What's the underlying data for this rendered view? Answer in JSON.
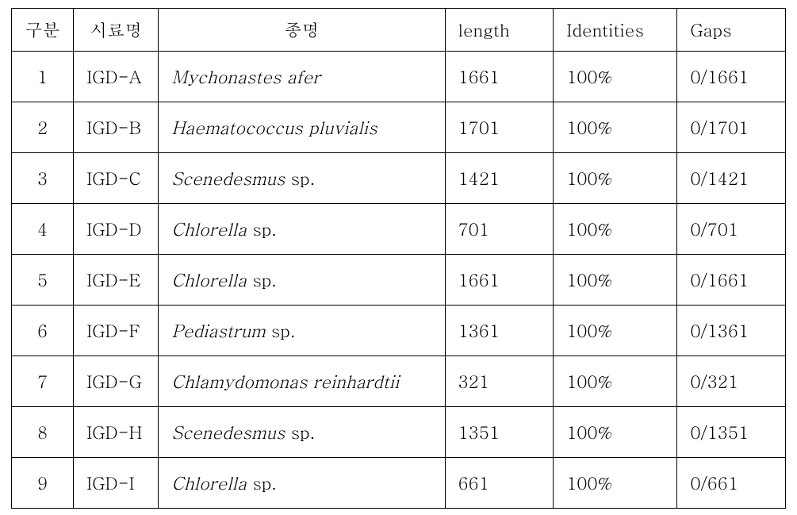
{
  "table": {
    "border_color": "#000000",
    "background_color": "#ffffff",
    "text_color": "#000000",
    "font_size_pt": 16,
    "column_widths_pct": [
      8,
      11,
      37,
      14,
      16,
      14
    ],
    "columns": [
      "구분",
      "시료명",
      "종명",
      "length",
      "Identities",
      "Gaps"
    ],
    "rows": [
      {
        "num": "1",
        "sample": "IGD-A",
        "genus": "Mychonastes",
        "epithet": "afer",
        "sp": false,
        "length": "1661",
        "identities": "100%",
        "gaps": "0/1661"
      },
      {
        "num": "2",
        "sample": "IGD-B",
        "genus": "Haematococcus",
        "epithet": "pluvialis",
        "sp": false,
        "length": "1701",
        "identities": "100%",
        "gaps": "0/1701"
      },
      {
        "num": "3",
        "sample": "IGD-C",
        "genus": "Scenedesmus",
        "epithet": "",
        "sp": true,
        "length": "1421",
        "identities": "100%",
        "gaps": "0/1421"
      },
      {
        "num": "4",
        "sample": "IGD-D",
        "genus": "Chlorella",
        "epithet": "",
        "sp": true,
        "length": "701",
        "identities": "100%",
        "gaps": "0/701"
      },
      {
        "num": "5",
        "sample": "IGD-E",
        "genus": "Chlorella",
        "epithet": "",
        "sp": true,
        "length": "1661",
        "identities": "100%",
        "gaps": "0/1661"
      },
      {
        "num": "6",
        "sample": "IGD-F",
        "genus": "Pediastrum",
        "epithet": "",
        "sp": true,
        "length": "1361",
        "identities": "100%",
        "gaps": "0/1361"
      },
      {
        "num": "7",
        "sample": "IGD-G",
        "genus": "Chlamydomonas",
        "epithet": "reinhardtii",
        "sp": false,
        "length": "321",
        "identities": "100%",
        "gaps": "0/321"
      },
      {
        "num": "8",
        "sample": "IGD-H",
        "genus": "Scenedesmus",
        "epithet": "",
        "sp": true,
        "length": "1351",
        "identities": "100%",
        "gaps": "0/1351"
      },
      {
        "num": "9",
        "sample": "IGD-I",
        "genus": "Chlorella",
        "epithet": "",
        "sp": true,
        "length": "661",
        "identities": "100%",
        "gaps": "0/661"
      }
    ]
  }
}
